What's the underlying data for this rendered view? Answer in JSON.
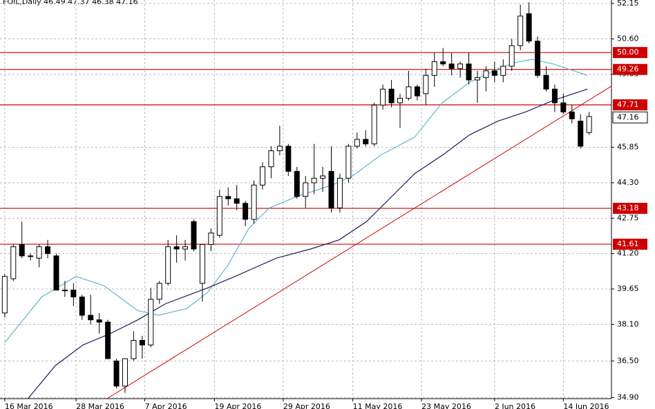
{
  "chart_data": {
    "type": "candlestick",
    "title": "FOIL,Daily  46.49 47.37 46.38 47.16",
    "open": [
      38.6,
      40.1,
      41.6,
      41.1,
      41.0,
      41.5,
      41.1,
      39.6,
      39.6,
      39.3,
      38.5,
      38.3,
      38.2,
      36.5,
      35.4,
      36.6,
      37.4,
      37.2,
      39.2,
      39.9,
      41.5,
      41.4,
      42.6,
      39.9,
      41.6,
      42.0,
      43.7,
      43.6,
      43.4,
      42.7,
      44.2,
      45.0,
      45.7,
      45.9,
      44.8,
      43.7,
      44.3,
      44.5,
      44.8,
      43.2,
      44.5,
      45.9,
      46.2,
      46.0,
      47.7,
      48.4,
      47.8,
      48.0,
      48.5,
      48.2,
      49.0,
      49.6,
      49.5,
      49.3,
      49.5,
      48.8,
      48.9,
      49.2,
      49.0,
      49.4,
      50.3,
      51.7,
      50.5,
      49.0,
      48.4,
      47.8,
      47.4,
      47.0,
      46.5
    ],
    "high": [
      40.3,
      41.6,
      42.6,
      41.2,
      41.6,
      41.8,
      41.2,
      40.0,
      39.9,
      39.4,
      39.4,
      38.6,
      38.3,
      36.6,
      36.6,
      37.8,
      37.6,
      39.7,
      40.0,
      41.8,
      42.0,
      41.8,
      42.7,
      41.6,
      42.3,
      44.0,
      44.1,
      44.2,
      43.5,
      44.4,
      45.2,
      45.9,
      46.8,
      46.0,
      45.0,
      44.6,
      46.0,
      45.0,
      45.9,
      44.7,
      46.0,
      46.5,
      46.6,
      47.8,
      48.6,
      48.8,
      48.2,
      49.2,
      48.6,
      49.3,
      50.0,
      50.2,
      50.0,
      49.6,
      50.0,
      49.2,
      49.4,
      49.6,
      49.7,
      50.6,
      52.1,
      52.2,
      50.7,
      49.4,
      48.6,
      48.2,
      47.7,
      47.3,
      47.4
    ],
    "low": [
      38.4,
      40.0,
      41.0,
      40.9,
      40.6,
      41.0,
      39.6,
      39.3,
      38.9,
      38.3,
      38.1,
      37.7,
      36.6,
      35.3,
      35.1,
      36.5,
      36.6,
      37.1,
      39.0,
      39.8,
      40.8,
      40.9,
      41.3,
      39.1,
      41.3,
      41.9,
      43.3,
      43.1,
      42.4,
      42.5,
      44.0,
      44.5,
      45.5,
      44.6,
      43.6,
      43.2,
      43.8,
      43.9,
      43.0,
      43.0,
      44.3,
      45.8,
      45.9,
      45.9,
      47.5,
      47.6,
      46.7,
      47.9,
      47.9,
      47.7,
      48.5,
      49.4,
      49.0,
      48.9,
      48.6,
      47.8,
      48.3,
      48.7,
      48.7,
      49.2,
      50.1,
      50.4,
      48.9,
      48.3,
      47.4,
      47.3,
      46.9,
      45.8,
      46.4
    ],
    "close": [
      40.2,
      41.5,
      41.1,
      41.1,
      41.5,
      41.2,
      39.6,
      39.6,
      39.3,
      38.5,
      38.3,
      38.2,
      36.6,
      35.4,
      36.6,
      37.4,
      37.2,
      39.2,
      39.9,
      41.5,
      41.4,
      41.5,
      41.4,
      41.6,
      42.1,
      43.7,
      43.6,
      43.4,
      42.7,
      44.2,
      45.0,
      45.7,
      45.9,
      44.8,
      43.7,
      44.3,
      44.5,
      44.6,
      43.2,
      44.5,
      45.9,
      46.2,
      46.0,
      47.7,
      48.4,
      47.8,
      48.0,
      48.5,
      48.1,
      49.0,
      49.6,
      49.5,
      49.3,
      49.5,
      48.8,
      48.9,
      49.2,
      49.0,
      49.4,
      50.3,
      51.6,
      50.5,
      49.0,
      48.4,
      47.8,
      47.4,
      47.1,
      45.9,
      47.2
    ],
    "bull_color": "#ffffff",
    "bear_color": "#000000",
    "series": [
      {
        "color": "#5fb6c4",
        "x": [
          0,
          4.3,
          8.3,
          11.5,
          15.5,
          17.9,
          21.2,
          23.6,
          26,
          28.4,
          30.8,
          34,
          38.1,
          40.5,
          43.7,
          47.7,
          50.9,
          54.1,
          57.4,
          59.8,
          61.4,
          63.8,
          67.8
        ],
        "values": [
          37.3,
          39.3,
          40.2,
          39.8,
          38.7,
          38.5,
          38.8,
          39.5,
          40.7,
          42.3,
          43.2,
          43.7,
          44.2,
          44.6,
          45.5,
          46.3,
          47.8,
          48.7,
          49.3,
          49.6,
          49.7,
          49.5,
          49.0
        ]
      },
      {
        "color": "#1b1b5a",
        "x": [
          2.7,
          5.9,
          9.1,
          12.3,
          15.5,
          18.7,
          23.6,
          26.8,
          31.6,
          35.6,
          38.9,
          42.1,
          44.5,
          47.7,
          50.9,
          54.1,
          57.4,
          60.6,
          63.8,
          67.8
        ],
        "values": [
          34.85,
          36.3,
          37.2,
          37.7,
          38.3,
          39.0,
          39.7,
          40.2,
          41.0,
          41.4,
          41.8,
          42.6,
          43.5,
          44.7,
          45.5,
          46.4,
          47.0,
          47.4,
          47.9,
          48.4
        ]
      }
    ],
    "trendline": {
      "color": "#cc0000",
      "x": [
        11.9,
        70.6
      ],
      "values": [
        34.85,
        48.53
      ]
    },
    "levels": [
      {
        "value": 50.0,
        "label": "50.00"
      },
      {
        "value": 49.26,
        "label": "49.26"
      },
      {
        "value": 47.71,
        "label": "47.71"
      },
      {
        "value": 43.18,
        "label": "43.18"
      },
      {
        "value": 41.61,
        "label": "41.61"
      }
    ],
    "level_color": "#cc0000",
    "last_price": {
      "value": 47.16,
      "label": "47.16"
    },
    "ylim": [
      34.85,
      52.3
    ],
    "yticks": [
      52.15,
      {
        "value": 50.6,
        "label": "50.60"
      },
      49.05,
      45.85,
      {
        "value": 44.3,
        "label": "44.30"
      },
      42.75,
      {
        "value": 41.2,
        "label": "41.20"
      },
      39.65,
      {
        "value": 38.1,
        "label": "38.10"
      },
      {
        "value": 36.5,
        "label": "36.50"
      },
      {
        "value": 34.9,
        "label": "34.90"
      }
    ],
    "xlim": [
      -0.55,
      70.6
    ],
    "xticks": [
      {
        "value": 0,
        "label": "16 Mar 2016"
      },
      {
        "value": 8.3,
        "label": "28 Mar 2016"
      },
      {
        "value": 16.3,
        "label": "7 Apr 2016"
      },
      {
        "value": 24.4,
        "label": "19 Apr 2016"
      },
      {
        "value": 32.4,
        "label": "29 Apr 2016"
      },
      {
        "value": 40.5,
        "label": "11 May 2016"
      },
      {
        "value": 48.5,
        "label": "23 May 2016"
      },
      {
        "value": 57,
        "label": "2 Jun 2016"
      },
      {
        "value": 65,
        "label": "14 Jun 2016"
      }
    ],
    "grid": true
  }
}
